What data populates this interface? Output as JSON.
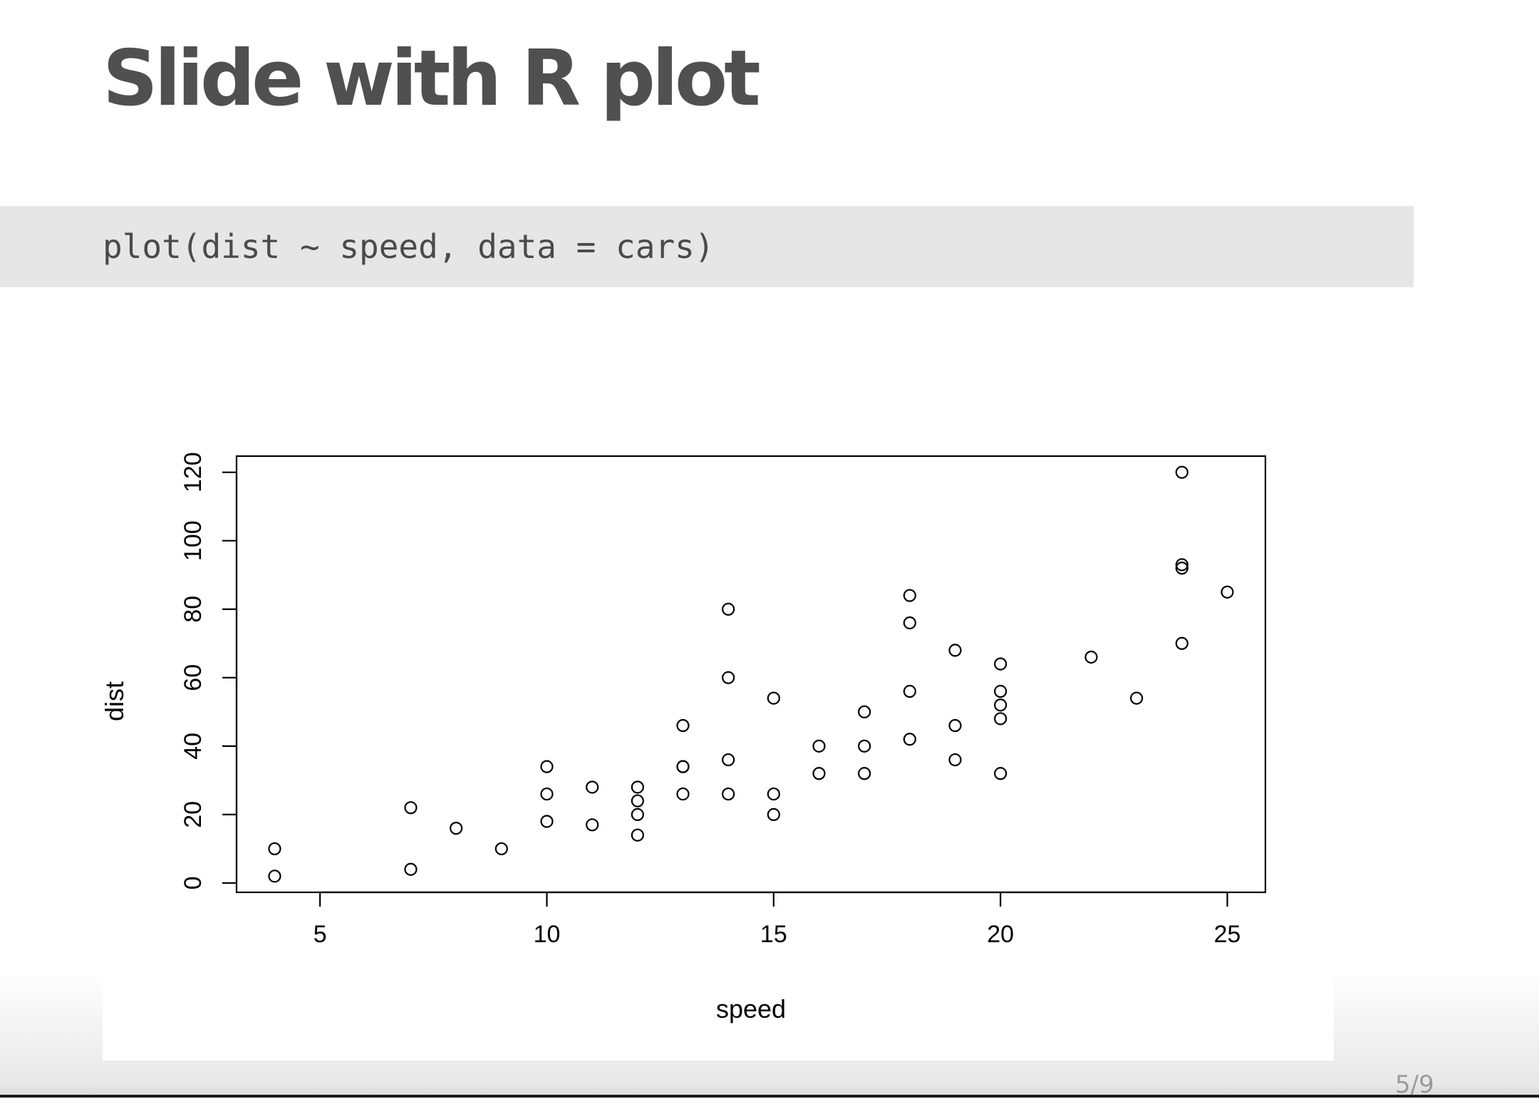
{
  "slide": {
    "title": "Slide with R plot",
    "code": "plot(dist ~ speed, data = cars)",
    "page_number": "5/9"
  },
  "chart_data": {
    "type": "scatter",
    "title": "",
    "xlabel": "speed",
    "ylabel": "dist",
    "xlim": [
      3.16,
      25.84
    ],
    "ylim": [
      -2.72,
      124.72
    ],
    "x_ticks": [
      5,
      10,
      15,
      20,
      25
    ],
    "y_ticks": [
      0,
      20,
      40,
      60,
      80,
      100,
      120
    ],
    "x_tick_labels": [
      "5",
      "10",
      "15",
      "20",
      "25"
    ],
    "y_tick_labels": [
      "0",
      "20",
      "40",
      "60",
      "80",
      "100",
      "120"
    ],
    "marker": "open-circle",
    "grid": false,
    "legend": "none",
    "point_color": "#000000",
    "points": [
      [
        4,
        2
      ],
      [
        4,
        10
      ],
      [
        7,
        4
      ],
      [
        7,
        22
      ],
      [
        8,
        16
      ],
      [
        9,
        10
      ],
      [
        10,
        18
      ],
      [
        10,
        26
      ],
      [
        10,
        34
      ],
      [
        11,
        17
      ],
      [
        11,
        28
      ],
      [
        12,
        14
      ],
      [
        12,
        20
      ],
      [
        12,
        24
      ],
      [
        12,
        28
      ],
      [
        13,
        26
      ],
      [
        13,
        34
      ],
      [
        13,
        34
      ],
      [
        13,
        46
      ],
      [
        14,
        26
      ],
      [
        14,
        36
      ],
      [
        14,
        60
      ],
      [
        14,
        80
      ],
      [
        15,
        20
      ],
      [
        15,
        26
      ],
      [
        15,
        54
      ],
      [
        16,
        32
      ],
      [
        16,
        40
      ],
      [
        17,
        32
      ],
      [
        17,
        40
      ],
      [
        17,
        50
      ],
      [
        18,
        42
      ],
      [
        18,
        56
      ],
      [
        18,
        76
      ],
      [
        18,
        84
      ],
      [
        19,
        36
      ],
      [
        19,
        46
      ],
      [
        19,
        68
      ],
      [
        20,
        32
      ],
      [
        20,
        48
      ],
      [
        20,
        52
      ],
      [
        20,
        56
      ],
      [
        20,
        64
      ],
      [
        22,
        66
      ],
      [
        23,
        54
      ],
      [
        24,
        70
      ],
      [
        24,
        92
      ],
      [
        24,
        93
      ],
      [
        24,
        120
      ],
      [
        25,
        85
      ]
    ]
  }
}
